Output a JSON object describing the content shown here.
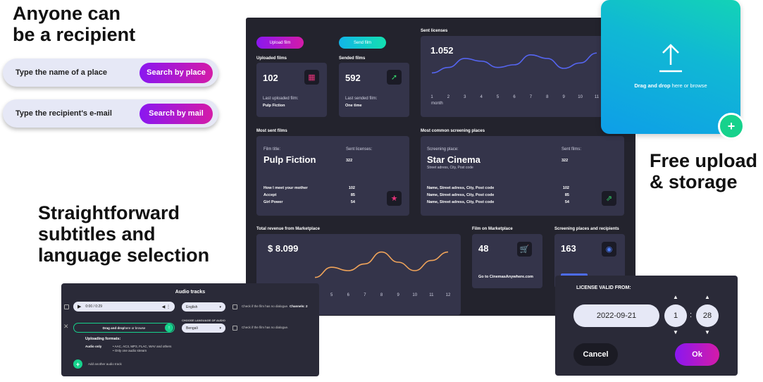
{
  "headlines": {
    "recipient": [
      "Anyone can",
      "be a recipient"
    ],
    "subtitles": [
      "Straightforward",
      "subtitles and",
      "language selection"
    ],
    "upload": [
      "Free upload",
      "& storage"
    ]
  },
  "search": {
    "place_placeholder": "Type the name of a place",
    "place_button": "Search by place",
    "mail_placeholder": "Type the recipient's e-mail",
    "mail_button": "Search by mail"
  },
  "dashboard": {
    "upload_button": "Upload film",
    "send_button": "Send film",
    "uploaded": {
      "title": "Uploaded films",
      "value": "102",
      "sub": "Last uploaded film:",
      "film": "Pulp Fiction"
    },
    "sended": {
      "title": "Sended films",
      "value": "592",
      "sub": "Last sended film:",
      "film": "One time"
    },
    "sent_licenses": {
      "title": "Sent licenses",
      "value": "1.052",
      "xlabel": "month",
      "ticks": [
        "1",
        "2",
        "3",
        "4",
        "5",
        "6",
        "7",
        "8",
        "9",
        "10",
        "11"
      ]
    },
    "most_sent": {
      "title": "Most sent films",
      "film_label": "Film title:",
      "licenses_label": "Sent licenses:",
      "film": "Pulp Fiction",
      "value": "322",
      "rows": [
        {
          "name": "How I meet your mother",
          "value": "102"
        },
        {
          "name": "Accept",
          "value": "85"
        },
        {
          "name": "Girl Power",
          "value": "54"
        }
      ]
    },
    "screening": {
      "title": "Most common screening places",
      "place_label": "Screening place:",
      "films_label": "Sent films:",
      "place": "Star Cinema",
      "address": "Street adress, City, Post code",
      "value": "322",
      "rows": [
        {
          "name": "Name, Street adress, City, Post code",
          "value": "102"
        },
        {
          "name": "Name, Street adress, City, Post code",
          "value": "85"
        },
        {
          "name": "Name, Street adress, City, Post code",
          "value": "54"
        }
      ]
    },
    "revenue": {
      "title": "Total revenue from Marketplace",
      "value": "$ 8.099",
      "ticks": [
        "5",
        "6",
        "7",
        "8",
        "9",
        "10",
        "11",
        "12"
      ]
    },
    "marketplace": {
      "title": "Film on Marketplace",
      "value": "48",
      "link": "Go to CinemasAnywhere.com"
    },
    "places": {
      "title": "Screening places and recipients",
      "value": "163"
    }
  },
  "upload_card": {
    "drag": "Drag and drop",
    "rest": " here or browse"
  },
  "audio": {
    "title": "Audio tracks",
    "time": "0:00 / 0:29",
    "lang1": "English",
    "check1": "Check if the film has no dialogue.",
    "channels": "Channels: 2",
    "drag": "Drag and drop",
    "drag_rest": " here or browse",
    "choose": "CHOOSE LANGUAGE OF AUDIO",
    "lang2": "Bengali",
    "check2": "Check if the film has no dialogue.",
    "formats_title": "Uploading formats:",
    "audio_only": "Audio only",
    "formats": [
      "AAC, AC3, MP3, FLAC, WAV and others",
      "Only one audio stream"
    ],
    "add": "Add another audio track"
  },
  "license": {
    "title": "LICENSE VALID FROM:",
    "date": "2022-09-21",
    "hour": "1",
    "minute": "28",
    "cancel": "Cancel",
    "ok": "Ok"
  },
  "chart_data": [
    {
      "type": "line",
      "title": "Sent licenses",
      "xlabel": "month",
      "x": [
        1,
        2,
        3,
        4,
        5,
        6,
        7,
        8,
        9,
        10,
        11
      ],
      "values": [
        2,
        2.6,
        3.6,
        3.3,
        2.6,
        2.9,
        4.0,
        3.6,
        2.5,
        3.1,
        4.2
      ],
      "ylim": [
        0,
        5
      ],
      "grid": false
    },
    {
      "type": "line",
      "title": "Total revenue from Marketplace",
      "x": [
        4,
        5,
        6,
        7,
        8,
        9,
        10,
        11,
        12
      ],
      "values": [
        1.2,
        2.4,
        2.0,
        2.8,
        4.2,
        3.0,
        2.0,
        3.2,
        4.2
      ],
      "ylim": [
        0,
        5
      ],
      "grid": false
    }
  ]
}
